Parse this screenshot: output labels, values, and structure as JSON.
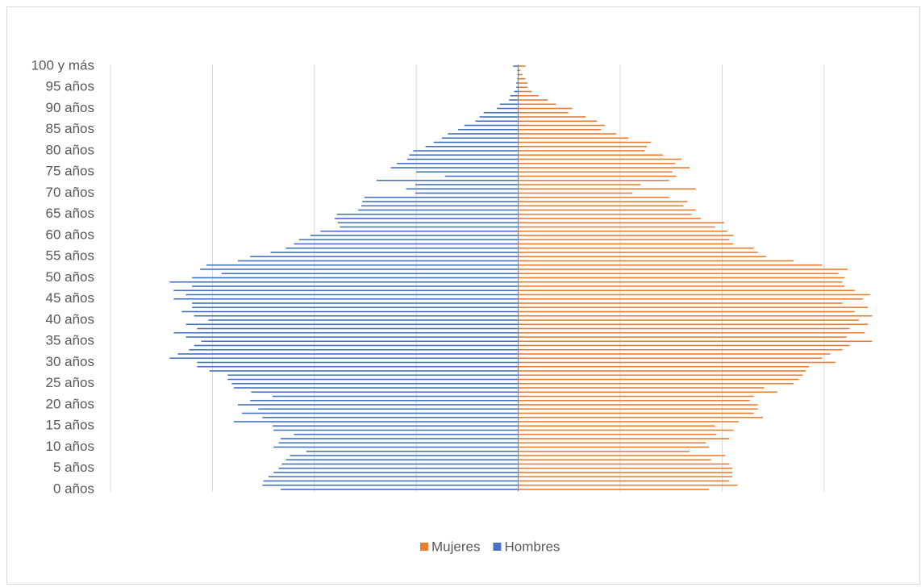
{
  "chart_data": {
    "type": "pyramid",
    "categories": [
      "0 años",
      null,
      null,
      null,
      null,
      "5 años",
      null,
      null,
      null,
      null,
      "10 años",
      null,
      null,
      null,
      null,
      "15 años",
      null,
      null,
      null,
      null,
      "20 años",
      null,
      null,
      null,
      null,
      "25 años",
      null,
      null,
      null,
      null,
      "30 años",
      null,
      null,
      null,
      null,
      "35 años",
      null,
      null,
      null,
      null,
      "40 años",
      null,
      null,
      null,
      null,
      "45 años",
      null,
      null,
      null,
      null,
      "50 años",
      null,
      null,
      null,
      null,
      "55 años",
      null,
      null,
      null,
      null,
      "60 años",
      null,
      null,
      null,
      null,
      "65 años",
      null,
      null,
      null,
      null,
      "70 años",
      null,
      null,
      null,
      null,
      "75 años",
      null,
      null,
      null,
      null,
      "80 años",
      null,
      null,
      null,
      null,
      "85 años",
      null,
      null,
      null,
      null,
      "90 años",
      null,
      null,
      null,
      null,
      "95 años",
      null,
      null,
      null,
      null,
      "100 y más"
    ],
    "series": [
      {
        "name": "Mujeres",
        "color": "#ed7d31",
        "values": [
          187,
          215,
          207,
          210,
          210,
          210,
          207,
          189,
          203,
          168,
          187,
          184,
          207,
          194,
          211,
          193,
          216,
          240,
          231,
          235,
          235,
          227,
          231,
          254,
          241,
          270,
          275,
          279,
          282,
          285,
          311,
          298,
          306,
          318,
          325,
          347,
          322,
          340,
          325,
          343,
          334,
          347,
          330,
          343,
          318,
          338,
          345,
          330,
          320,
          318,
          320,
          314,
          323,
          298,
          270,
          243,
          235,
          231,
          211,
          207,
          211,
          205,
          193,
          202,
          179,
          170,
          174,
          162,
          166,
          148,
          112,
          174,
          120,
          148,
          155,
          151,
          168,
          154,
          160,
          142,
          124,
          126,
          130,
          108,
          96,
          81,
          85,
          77,
          66,
          49,
          53,
          37,
          29,
          20,
          13,
          9,
          9,
          7,
          4,
          2,
          7
        ]
      },
      {
        "name": "Hombres",
        "color": "#4472c4",
        "values": [
          -233,
          -251,
          -250,
          -245,
          -240,
          -235,
          -232,
          -228,
          -224,
          -208,
          -240,
          -235,
          -233,
          -220,
          -240,
          -241,
          -279,
          -251,
          -271,
          -255,
          -275,
          -263,
          -241,
          -262,
          -279,
          -281,
          -285,
          -285,
          -303,
          -315,
          -315,
          -342,
          -334,
          -323,
          -318,
          -311,
          -326,
          -338,
          -315,
          -326,
          -304,
          -318,
          -330,
          -320,
          -320,
          -338,
          -326,
          -338,
          -320,
          -342,
          -320,
          -291,
          -312,
          -306,
          -275,
          -263,
          -243,
          -228,
          -220,
          -215,
          -204,
          -194,
          -175,
          -177,
          -180,
          -178,
          -157,
          -154,
          -153,
          -151,
          -101,
          -110,
          -101,
          -139,
          -72,
          -100,
          -125,
          -119,
          -109,
          -107,
          -103,
          -91,
          -83,
          -75,
          -69,
          -59,
          -53,
          -42,
          -38,
          -34,
          -21,
          -18,
          -9,
          -8,
          -4,
          -2,
          -2,
          -1,
          -1,
          -1,
          -5
        ]
      }
    ],
    "xlim": [
      -400,
      380
    ],
    "xticks": [
      -400,
      -300,
      -200,
      -100,
      0,
      100,
      200,
      300
    ],
    "grid": true
  }
}
